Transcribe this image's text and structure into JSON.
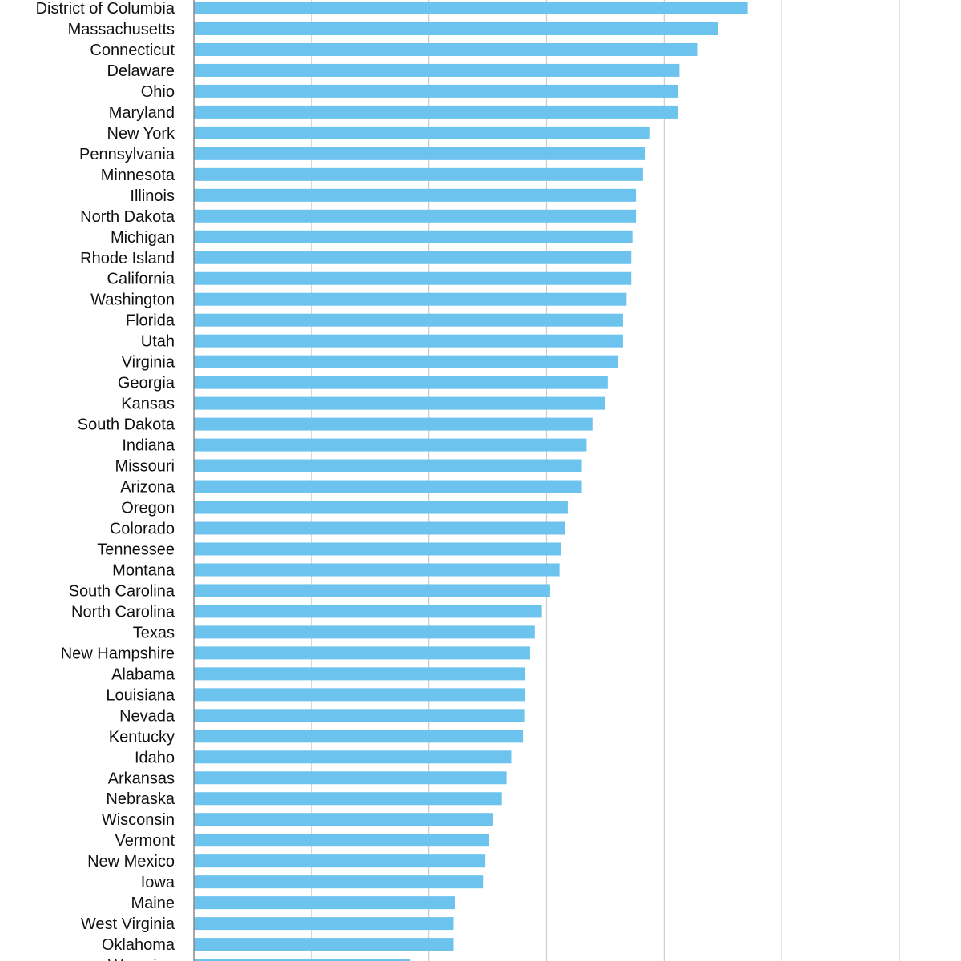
{
  "chart_data": {
    "type": "bar",
    "orientation": "horizontal",
    "title": "",
    "xlabel": "",
    "ylabel": "",
    "xlim": [
      0,
      60
    ],
    "grid": true,
    "bar_color": "#6cc3ee",
    "grid_color": "#cccccc",
    "categories": [
      "District of Columbia",
      "Massachusetts",
      "Connecticut",
      "Delaware",
      "Ohio",
      "Maryland",
      "New York",
      "Pennsylvania",
      "Minnesota",
      "Illinois",
      "North Dakota",
      "Michigan",
      "Rhode Island",
      "California",
      "Washington",
      "Florida",
      "Utah",
      "Virginia",
      "Georgia",
      "Kansas",
      "South Dakota",
      "Indiana",
      "Missouri",
      "Arizona",
      "Oregon",
      "Colorado",
      "Tennessee",
      "Montana",
      "South Carolina",
      "North Carolina",
      "Texas",
      "New Hampshire",
      "Alabama",
      "Louisiana",
      "Nevada",
      "Kentucky",
      "Idaho",
      "Arkansas",
      "Nebraska",
      "Wisconsin",
      "Vermont",
      "New Mexico",
      "Iowa",
      "Maine",
      "West Virginia",
      "Oklahoma",
      "Wyoming"
    ],
    "values": [
      47.1,
      44.6,
      42.8,
      41.3,
      41.2,
      41.2,
      38.8,
      38.4,
      38.2,
      37.6,
      37.6,
      37.3,
      37.2,
      37.2,
      36.8,
      36.5,
      36.5,
      36.1,
      35.2,
      35.0,
      33.9,
      33.4,
      33.0,
      33.0,
      31.8,
      31.6,
      31.2,
      31.1,
      30.3,
      29.6,
      29.0,
      28.6,
      28.2,
      28.2,
      28.1,
      28.0,
      27.0,
      26.6,
      26.2,
      25.4,
      25.1,
      24.8,
      24.6,
      22.2,
      22.1,
      22.1,
      18.4
    ]
  }
}
